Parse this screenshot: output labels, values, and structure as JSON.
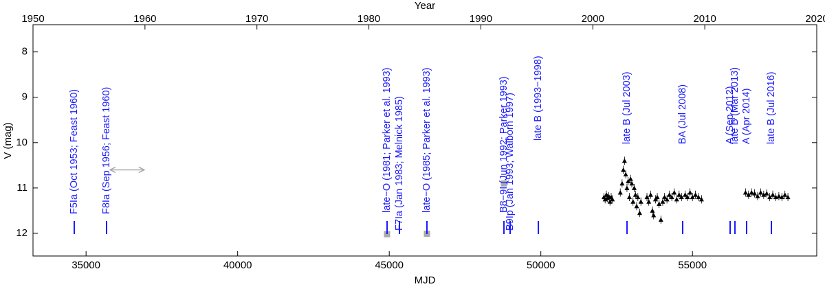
{
  "chart_data": {
    "type": "scatter",
    "x_label": "MJD",
    "x2_label": "Year",
    "y_label": "V (mag)",
    "xlim": [
      33250,
      59100
    ],
    "xticks": [
      35000,
      40000,
      45000,
      50000,
      55000
    ],
    "x2lim": [
      1950,
      2020
    ],
    "x2ticks": [
      1950,
      1960,
      1970,
      1980,
      1990,
      2000,
      2010,
      2020
    ],
    "ylim": [
      12.5,
      7.4
    ],
    "yticks": [
      8,
      9,
      10,
      11,
      12
    ],
    "series": [
      {
        "color": "#000000",
        "x": [
          52080,
          52120,
          52160,
          52200,
          52240,
          52280,
          52320,
          52360,
          52620,
          52680,
          52720,
          52760,
          52800,
          52840,
          52880,
          52920,
          52960,
          53000,
          53040,
          53080,
          53120,
          53160,
          53200,
          53260,
          53300,
          53500,
          53560,
          53620,
          53680,
          53720,
          53780,
          53840,
          53900,
          53960,
          54020,
          54080,
          54160,
          54240,
          54320,
          54400,
          54480,
          54560,
          54640,
          54760,
          54840,
          54920,
          55000,
          55100,
          55200,
          55300,
          56750,
          56850,
          56950,
          57050,
          57150,
          57250,
          57350,
          57450,
          57550,
          57650,
          57750,
          57850,
          57950,
          58050,
          58150
        ],
        "values": [
          11.2,
          11.25,
          11.15,
          11.22,
          11.18,
          11.3,
          11.2,
          11.25,
          11.1,
          10.9,
          10.6,
          10.4,
          10.7,
          11.0,
          10.85,
          11.2,
          10.8,
          10.9,
          11.3,
          11.0,
          11.15,
          11.4,
          11.2,
          11.55,
          11.3,
          11.2,
          11.3,
          11.15,
          11.5,
          11.6,
          11.25,
          11.2,
          11.35,
          11.7,
          11.3,
          11.2,
          11.25,
          11.15,
          11.2,
          11.1,
          11.25,
          11.15,
          11.2,
          11.15,
          11.2,
          11.1,
          11.2,
          11.15,
          11.2,
          11.25,
          11.1,
          11.15,
          11.1,
          11.12,
          11.18,
          11.1,
          11.15,
          11.12,
          11.2,
          11.15,
          11.2,
          11.18,
          11.2,
          11.15,
          11.2
        ]
      },
      {
        "color": "#aaaaaa",
        "x": [
          44928,
          46243,
          48783
        ],
        "values": [
          12.02,
          12.01,
          10.9
        ]
      }
    ],
    "arrow": {
      "x": [
        35790,
        36920
      ],
      "y": 10.6,
      "color": "#aaaaaa"
    },
    "annotation_color": "#1a1aff",
    "annotations": [
      {
        "x": 34610,
        "text": "F5Ia (Oct 1953; Feast 1960)"
      },
      {
        "x": 35676,
        "text": "F8Ia (Sep 1956; Feast 1960)"
      },
      {
        "x": 44928,
        "text": "late−O (1981; Parker et al. 1993)"
      },
      {
        "x": 45336,
        "text": "F7Ia (Jan 1983; Melnick 1985)"
      },
      {
        "x": 46243,
        "text": "late−O (1985; Parker et al. 1993)"
      },
      {
        "x": 48783,
        "text": "B8−9I (Jun 1992; Parker 1993)"
      },
      {
        "x": 48987,
        "text": "B9Ip (Jan 1993; Walborn 1997)"
      },
      {
        "x": 49917,
        "text": "late B (1993−1998)"
      },
      {
        "x": 52842,
        "text": "late B (Jul 2003)"
      },
      {
        "x": 54678,
        "text": "BA (Jul 2008)"
      },
      {
        "x": 56243,
        "text": "A (Sep 2012)"
      },
      {
        "x": 56402,
        "text": "late B (Mar 2013)"
      },
      {
        "x": 56787,
        "text": "A (Apr 2014)"
      },
      {
        "x": 57604,
        "text": "late B (Jul 2016)"
      }
    ]
  }
}
